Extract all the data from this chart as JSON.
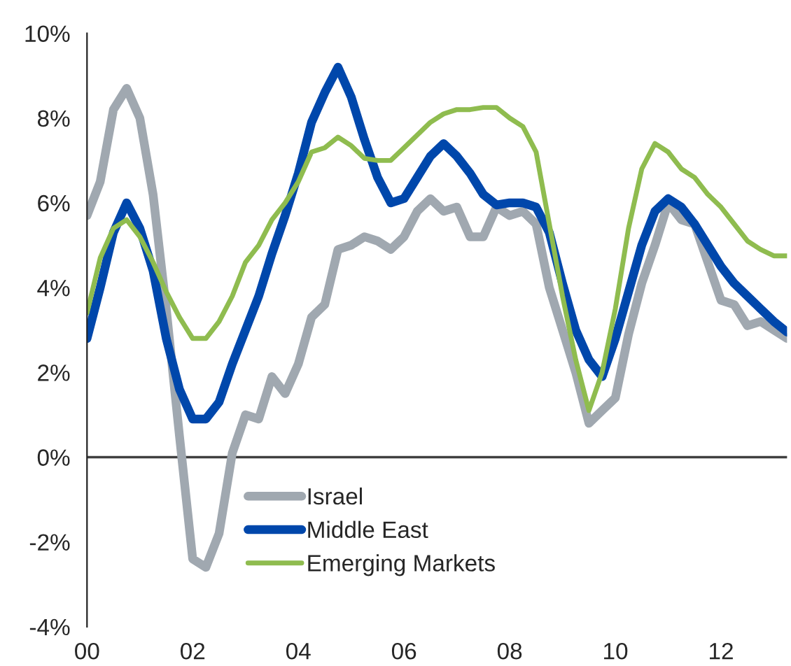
{
  "chart_data": {
    "type": "line",
    "x": [
      2000,
      2000.25,
      2000.5,
      2000.75,
      2001,
      2001.25,
      2001.5,
      2001.75,
      2002,
      2002.25,
      2002.5,
      2002.75,
      2003,
      2003.25,
      2003.5,
      2003.75,
      2004,
      2004.25,
      2004.5,
      2004.75,
      2005,
      2005.25,
      2005.5,
      2005.75,
      2006,
      2006.25,
      2006.5,
      2006.75,
      2007,
      2007.25,
      2007.5,
      2007.75,
      2008,
      2008.25,
      2008.5,
      2008.75,
      2009,
      2009.25,
      2009.5,
      2009.75,
      2010,
      2010.25,
      2010.5,
      2010.75,
      2011,
      2011.25,
      2011.5,
      2011.75,
      2012,
      2012.25,
      2012.5,
      2012.75,
      2013,
      2013.25
    ],
    "series": [
      {
        "name": "Israel",
        "color": "#a0a8b0",
        "values": [
          5.7,
          6.5,
          8.2,
          8.7,
          8.0,
          6.2,
          3.5,
          0.5,
          -2.4,
          -2.6,
          -1.8,
          0.1,
          1.0,
          0.9,
          1.9,
          1.5,
          2.2,
          3.3,
          3.6,
          4.9,
          5.0,
          5.2,
          5.1,
          4.9,
          5.2,
          5.8,
          6.1,
          5.8,
          5.9,
          5.2,
          5.2,
          5.9,
          5.7,
          5.8,
          5.5,
          4.0,
          3.0,
          2.0,
          0.8,
          1.1,
          1.4,
          2.9,
          4.1,
          5.0,
          6.0,
          5.6,
          5.5,
          4.6,
          3.7,
          3.6,
          3.1,
          3.2,
          3.0,
          2.8
        ]
      },
      {
        "name": "Middle East",
        "color": "#0047ab",
        "values": [
          2.8,
          4.0,
          5.3,
          6.0,
          5.4,
          4.4,
          2.8,
          1.6,
          0.9,
          0.9,
          1.3,
          2.2,
          3.0,
          3.8,
          4.8,
          5.7,
          6.7,
          7.9,
          8.6,
          9.2,
          8.5,
          7.5,
          6.6,
          6.0,
          6.1,
          6.6,
          7.1,
          7.4,
          7.1,
          6.7,
          6.2,
          5.95,
          6.0,
          6.0,
          5.9,
          5.3,
          4.1,
          3.0,
          2.3,
          1.9,
          2.8,
          3.9,
          5.0,
          5.8,
          6.1,
          5.9,
          5.5,
          5.0,
          4.5,
          4.1,
          3.8,
          3.5,
          3.2,
          2.95
        ]
      },
      {
        "name": "Emerging Markets",
        "color": "#8fbc4f",
        "values": [
          3.4,
          4.7,
          5.4,
          5.6,
          5.2,
          4.6,
          3.9,
          3.3,
          2.8,
          2.8,
          3.2,
          3.8,
          4.6,
          5.0,
          5.6,
          6.0,
          6.5,
          7.2,
          7.3,
          7.55,
          7.35,
          7.05,
          7.0,
          7.0,
          7.3,
          7.6,
          7.9,
          8.1,
          8.2,
          8.2,
          8.25,
          8.25,
          8.0,
          7.8,
          7.2,
          5.5,
          3.8,
          2.3,
          1.1,
          2.0,
          3.5,
          5.4,
          6.8,
          7.4,
          7.2,
          6.8,
          6.6,
          6.2,
          5.9,
          5.5,
          5.1,
          4.9,
          4.75,
          4.75
        ]
      }
    ],
    "xlim": [
      2000,
      2013.25
    ],
    "xticks": [
      {
        "value": 2000,
        "label": "00"
      },
      {
        "value": 2002,
        "label": "02"
      },
      {
        "value": 2004,
        "label": "04"
      },
      {
        "value": 2006,
        "label": "06"
      },
      {
        "value": 2008,
        "label": "08"
      },
      {
        "value": 2010,
        "label": "10"
      },
      {
        "value": 2012,
        "label": "12"
      }
    ],
    "ylim": [
      -4,
      10
    ],
    "yticks": [
      {
        "value": -4,
        "label": "-4%"
      },
      {
        "value": -2,
        "label": "-2%"
      },
      {
        "value": 0,
        "label": "0%"
      },
      {
        "value": 2,
        "label": "2%"
      },
      {
        "value": 4,
        "label": "4%"
      },
      {
        "value": 6,
        "label": "6%"
      },
      {
        "value": 8,
        "label": "8%"
      },
      {
        "value": 10,
        "label": "10%"
      }
    ],
    "ref_lines": [
      {
        "axis": "y",
        "value": 0,
        "color": "#404040"
      }
    ],
    "legend": "bottom left",
    "marker": "none",
    "line_style": "solid"
  }
}
